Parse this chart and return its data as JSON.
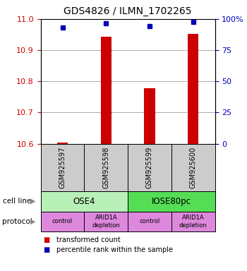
{
  "title": "GDS4826 / ILMN_1702265",
  "samples": [
    "GSM925597",
    "GSM925598",
    "GSM925599",
    "GSM925600"
  ],
  "red_values": [
    10.603,
    10.943,
    10.778,
    10.952
  ],
  "blue_values": [
    93.0,
    96.5,
    94.0,
    97.5
  ],
  "ylim_left": [
    10.6,
    11.0
  ],
  "ylim_right": [
    0,
    100
  ],
  "yticks_left": [
    10.6,
    10.7,
    10.8,
    10.9,
    11.0
  ],
  "yticks_right": [
    0,
    25,
    50,
    75,
    100
  ],
  "ytick_labels_right": [
    "0",
    "25",
    "50",
    "75",
    "100%"
  ],
  "cell_line_labels": [
    "OSE4",
    "IOSE80pc"
  ],
  "cell_line_spans": [
    [
      0,
      1
    ],
    [
      2,
      3
    ]
  ],
  "cell_line_colors": [
    "#b8f0b8",
    "#55dd55"
  ],
  "protocol_labels": [
    "control",
    "ARID1A\ndepletion",
    "control",
    "ARID1A\ndepletion"
  ],
  "protocol_color": "#dd88dd",
  "sample_box_color": "#cccccc",
  "bar_color": "#cc0000",
  "dot_color": "#0000bb",
  "legend_red_label": "transformed count",
  "legend_blue_label": "percentile rank within the sample",
  "cell_line_row_label": "cell line",
  "protocol_row_label": "protocol",
  "left_tick_color": "#cc0000",
  "right_tick_color": "#0000bb",
  "bar_width": 0.25
}
